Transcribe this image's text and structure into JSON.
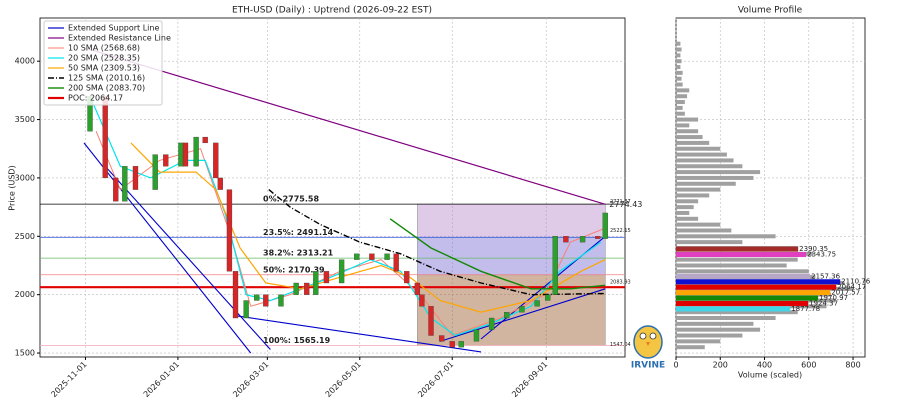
{
  "chart_data": [
    {
      "type": "candlestick",
      "title": "ETH-USD (Daily) : Uptrend (2026-09-22 EST)",
      "ylabel": "Price (USD)",
      "xlim": [
        "2025-10-02",
        "2026-10-23"
      ],
      "xticks": [
        "2025-11-01",
        "2026-01-01",
        "2026-03-01",
        "2026-05-01",
        "2026-07-01",
        "2026-09-01"
      ],
      "ylim": [
        1466,
        4370
      ],
      "yticks": [
        1500,
        2000,
        2500,
        3000,
        3500,
        4000
      ],
      "grid": true,
      "legend": "upper left",
      "up_color": "#2ca02c",
      "down_color": "#d62728",
      "x": [
        "2025-10-31",
        "2025-11-04",
        "2025-11-14",
        "2025-11-21",
        "2025-11-27",
        "2025-12-04",
        "2025-12-17",
        "2025-12-24",
        "2026-01-03",
        "2026-01-06",
        "2026-01-13",
        "2026-01-19",
        "2026-01-26",
        "2026-01-29",
        "2026-02-04",
        "2026-02-08",
        "2026-02-15",
        "2026-02-22",
        "2026-02-28",
        "2026-03-10",
        "2026-03-20",
        "2026-03-27",
        "2026-04-02",
        "2026-04-09",
        "2026-04-19",
        "2026-04-29",
        "2026-05-09",
        "2026-05-19",
        "2026-05-25",
        "2026-06-01",
        "2026-06-08",
        "2026-06-11",
        "2026-06-17",
        "2026-06-24",
        "2026-07-01",
        "2026-07-07",
        "2026-07-17",
        "2026-07-27",
        "2026-08-06",
        "2026-08-16",
        "2026-08-26",
        "2026-09-02",
        "2026-09-07",
        "2026-09-14",
        "2026-09-25",
        "2026-10-05",
        "2026-10-10"
      ],
      "values": [
        3400,
        3700,
        3000,
        2800,
        3100,
        2900,
        3200,
        3100,
        3300,
        3100,
        3350,
        3300,
        3000,
        2900,
        2200,
        1800,
        1950,
        2000,
        1900,
        2000,
        2100,
        2000,
        2200,
        2100,
        2300,
        2350,
        2300,
        2350,
        2200,
        2100,
        2000,
        1900,
        1650,
        1600,
        1550,
        1600,
        1700,
        1800,
        1850,
        1900,
        1950,
        2000,
        2500,
        2450,
        2500,
        2480,
        2700
      ],
      "zones": [
        {
          "from": "2026-06-08",
          "to": "2026-10-10",
          "low": 2491.14,
          "high": 2775.58,
          "color": "#b07cc6"
        },
        {
          "from": "2026-06-08",
          "to": "2026-10-10",
          "low": 2170.39,
          "high": 2491.14,
          "color": "#6a5acd"
        },
        {
          "from": "2026-06-08",
          "to": "2026-10-10",
          "low": 1565.19,
          "high": 2170.39,
          "color": "#8b4513"
        }
      ],
      "fib_levels": [
        {
          "label": "0%: 2775.58",
          "value": 2775.58,
          "color": "#800080",
          "line_color": "#000000"
        },
        {
          "label": "23.5%: 2491.14",
          "value": 2491.14,
          "color": "#0000cd",
          "line_color": "#4169e1"
        },
        {
          "label": "38.2%: 2313.21",
          "value": 2313.21,
          "color": "#228b22",
          "line_color": "#66bb66"
        },
        {
          "label": "50%: 2170.39",
          "value": 2170.39,
          "color": "#e00000",
          "line_color": "#f08080"
        },
        {
          "label": "100%: 1565.19",
          "value": 1565.19,
          "color": "#f4a0b8",
          "line_color": "#f4b0c0"
        }
      ],
      "support": {
        "name": "Extended Support Line",
        "color": "#0000cd",
        "segments": [
          {
            "x": [
              "2025-10-31",
              "2026-02-18"
            ],
            "values": [
              3300,
              1500
            ]
          },
          {
            "x": [
              "2025-11-14",
              "2026-03-03"
            ],
            "values": [
              3100,
              1530
            ]
          },
          {
            "x": [
              "2026-02-08",
              "2026-07-20"
            ],
            "values": [
              1820,
              1510
            ]
          },
          {
            "x": [
              "2026-06-23",
              "2026-10-10"
            ],
            "values": [
              1600,
              2050
            ]
          },
          {
            "x": [
              "2026-07-20",
              "2026-10-10"
            ],
            "values": [
              1620,
              2500
            ]
          }
        ]
      },
      "resistance": {
        "name": "Extended Resistance Line",
        "color": "#800080",
        "x": [
          "2025-11-04",
          "2026-10-10"
        ],
        "values": [
          4100,
          2774.43
        ]
      },
      "series": [
        {
          "name": "10 SMA (2568.68)",
          "color": "#fa8072",
          "dash": "",
          "width": 1,
          "x": [
            "2025-11-08",
            "2025-11-24",
            "2025-12-20",
            "2026-01-16",
            "2026-02-05",
            "2026-02-18",
            "2026-03-16",
            "2026-04-18",
            "2026-05-15",
            "2026-06-10",
            "2026-07-01",
            "2026-08-02",
            "2026-08-31",
            "2026-09-17",
            "2026-10-10"
          ],
          "values": [
            3400,
            2900,
            3150,
            3250,
            2500,
            1900,
            2000,
            2200,
            2300,
            2000,
            1650,
            1800,
            2000,
            2450,
            2570
          ]
        },
        {
          "name": "20 SMA (2528.35)",
          "color": "#00e5ee",
          "dash": "",
          "width": 1.2,
          "x": [
            "2025-11-04",
            "2025-11-24",
            "2025-12-14",
            "2026-01-06",
            "2026-01-19",
            "2026-02-01",
            "2026-02-15",
            "2026-03-03",
            "2026-03-23",
            "2026-04-12",
            "2026-05-08",
            "2026-05-28",
            "2026-06-17",
            "2026-07-03",
            "2026-07-26",
            "2026-08-22",
            "2026-09-10",
            "2026-10-07"
          ],
          "values": [
            3700,
            3100,
            3000,
            3150,
            3150,
            2700,
            2000,
            1950,
            2050,
            2150,
            2300,
            2200,
            1800,
            1650,
            1750,
            1900,
            2200,
            2450
          ]
        },
        {
          "name": "50 SMA (2309.53)",
          "color": "#ffa500",
          "dash": "",
          "width": 1.2,
          "x": [
            "2025-12-01",
            "2025-12-20",
            "2026-01-13",
            "2026-01-26",
            "2026-02-11",
            "2026-02-28",
            "2026-03-23",
            "2026-04-18",
            "2026-05-15",
            "2026-06-03",
            "2026-06-23",
            "2026-07-20",
            "2026-08-22",
            "2026-09-24",
            "2026-10-10"
          ],
          "values": [
            3300,
            3050,
            3050,
            2900,
            2400,
            2100,
            2050,
            2150,
            2250,
            2150,
            1950,
            1850,
            1950,
            2200,
            2300
          ]
        },
        {
          "name": "125 SMA (2010.16)",
          "color": "#000000",
          "dash": "6 2 1 2",
          "width": 1.4,
          "x": [
            "2026-03-02",
            "2026-03-16",
            "2026-04-05",
            "2026-05-01",
            "2026-05-28",
            "2026-06-23",
            "2026-07-20",
            "2026-08-22",
            "2026-10-10"
          ],
          "values": [
            2900,
            2750,
            2600,
            2450,
            2350,
            2200,
            2100,
            2000,
            2010
          ]
        },
        {
          "name": "200 SMA (2083.70)",
          "color": "#138808",
          "dash": "",
          "width": 1.4,
          "x": [
            "2026-05-21",
            "2026-06-17",
            "2026-07-20",
            "2026-08-22",
            "2026-09-17",
            "2026-10-10"
          ],
          "values": [
            2650,
            2400,
            2200,
            2050,
            2050,
            2080
          ]
        }
      ],
      "poc": {
        "name": "POC: 2064.17",
        "value": 2064.17,
        "color": "#e00000"
      },
      "end_labels": [
        {
          "value": 2771.37,
          "color": "#800080"
        },
        {
          "value": 2522.15,
          "color": "#0000cd"
        },
        {
          "value": 2083.93,
          "color": "#0000cd"
        },
        {
          "value": 1547.04,
          "color": "#0000cd"
        }
      ],
      "watermark": "IRVINE"
    },
    {
      "type": "volume_profile",
      "title": "Volume Profile",
      "xlabel": "Volume (scaled)",
      "xlim": [
        0,
        854
      ],
      "xticks": [
        0,
        200,
        400,
        600,
        800
      ],
      "color": "#a0a0a0",
      "prices": [
        1550,
        1600,
        1650,
        1700,
        1750,
        1800,
        1850,
        1900,
        1950,
        2000,
        2050,
        2100,
        2150,
        2200,
        2250,
        2300,
        2350,
        2400,
        2450,
        2500,
        2550,
        2600,
        2650,
        2700,
        2750,
        2800,
        2850,
        2900,
        2950,
        3000,
        3050,
        3100,
        3150,
        3200,
        3250,
        3300,
        3350,
        3400,
        3450,
        3500,
        3550,
        3600,
        3650,
        3700,
        3750,
        3800,
        3850,
        3900,
        3950,
        4000,
        4050,
        4100,
        4150
      ],
      "values": [
        130,
        200,
        300,
        380,
        350,
        450,
        550,
        680,
        720,
        700,
        800,
        760,
        630,
        600,
        500,
        550,
        620,
        550,
        300,
        450,
        250,
        200,
        100,
        60,
        80,
        100,
        150,
        200,
        270,
        350,
        380,
        300,
        260,
        230,
        200,
        150,
        120,
        100,
        60,
        100,
        40,
        30,
        40,
        50,
        60,
        30,
        25,
        30,
        20,
        25,
        20,
        25,
        20
      ],
      "highlights": [
        {
          "price": 2390.35,
          "volume": 552,
          "color": "#a52a2a"
        },
        {
          "price": 2343.75,
          "volume": 588,
          "color": "#e040c0"
        },
        {
          "price": 2157.36,
          "volume": 606,
          "color": "#b8a8c8"
        },
        {
          "price": 2110.76,
          "volume": 742,
          "color": "#1010d0"
        },
        {
          "price": 2064.17,
          "volume": 724,
          "color": "#e00000"
        },
        {
          "price": 2017.57,
          "volume": 697,
          "color": "#ffa500"
        },
        {
          "price": 1970.97,
          "volume": 642,
          "color": "#138808"
        },
        {
          "price": 1924.37,
          "volume": 597,
          "color": "#e00000"
        },
        {
          "price": 1877.78,
          "volume": 516,
          "color": "#40d8e8"
        }
      ]
    }
  ]
}
